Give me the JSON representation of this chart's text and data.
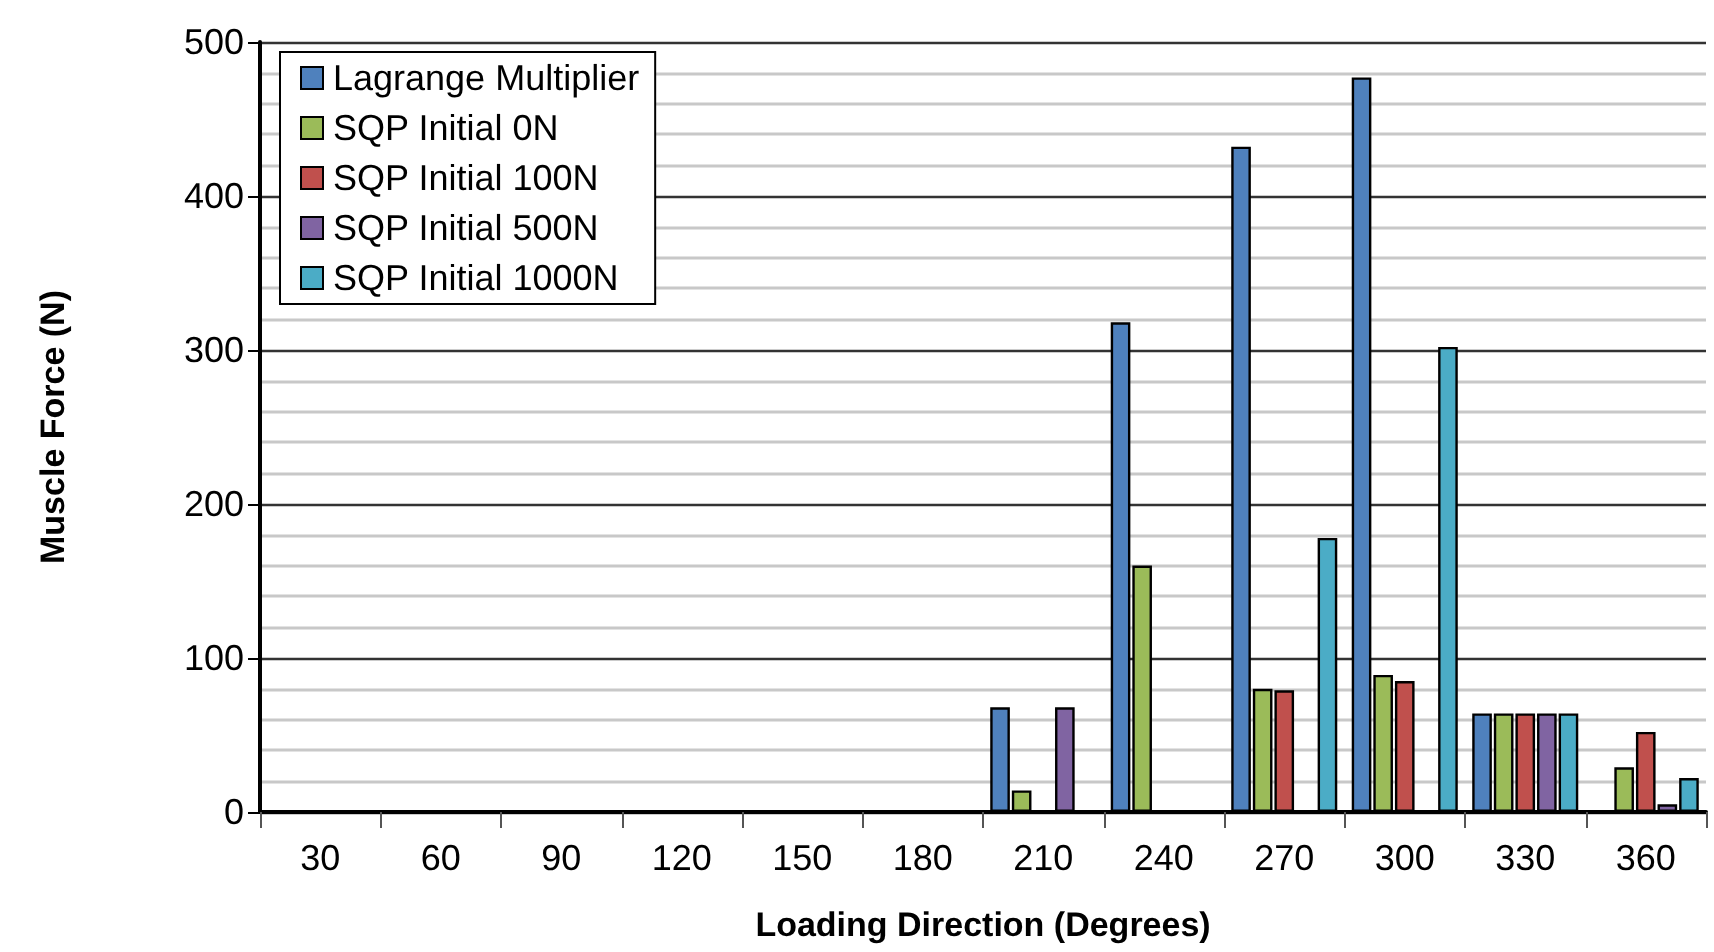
{
  "chart_data": {
    "type": "bar",
    "xlabel": "Loading Direction (Degrees)",
    "ylabel": "Muscle Force (N)",
    "categories": [
      "30",
      "60",
      "90",
      "120",
      "150",
      "180",
      "210",
      "240",
      "270",
      "300",
      "330",
      "360"
    ],
    "series": [
      {
        "name": "Lagrange Multiplier",
        "color": "#4f81bd",
        "values": [
          null,
          null,
          null,
          null,
          null,
          null,
          68,
          318,
          432,
          477,
          64,
          null
        ]
      },
      {
        "name": "SQP Initial 0N",
        "color": "#9bbb59",
        "values": [
          null,
          null,
          null,
          null,
          null,
          null,
          14,
          160,
          80,
          89,
          64,
          29
        ]
      },
      {
        "name": "SQP Initial 100N",
        "color": "#c0504d",
        "values": [
          null,
          null,
          null,
          null,
          null,
          null,
          null,
          null,
          79,
          85,
          64,
          52
        ]
      },
      {
        "name": "SQP Initial 500N",
        "color": "#8064a2",
        "values": [
          null,
          null,
          null,
          null,
          null,
          null,
          68,
          null,
          null,
          null,
          64,
          5
        ]
      },
      {
        "name": "SQP Initial 1000N",
        "color": "#4bacc6",
        "values": [
          null,
          null,
          null,
          null,
          null,
          null,
          null,
          null,
          178,
          302,
          64,
          22
        ]
      }
    ],
    "ylim": [
      0,
      500
    ],
    "yticks": [
      0,
      100,
      200,
      300,
      400,
      500
    ],
    "grid": "y",
    "legend": "top left"
  }
}
